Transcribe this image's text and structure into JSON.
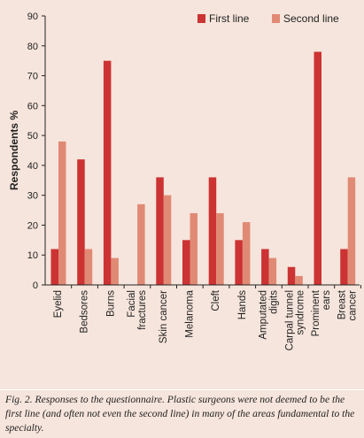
{
  "chart_data": {
    "type": "bar",
    "categories": [
      [
        "Eyelid"
      ],
      [
        "Bedsores"
      ],
      [
        "Burns"
      ],
      [
        "Facial",
        "fractures"
      ],
      [
        "Skin cancer"
      ],
      [
        "Melanoma"
      ],
      [
        "Cleft"
      ],
      [
        "Hands"
      ],
      [
        "Amputated",
        "digits"
      ],
      [
        "Carpal tunnel",
        "syndrome"
      ],
      [
        "Prominent",
        "ears"
      ],
      [
        "Breast",
        "cancer"
      ]
    ],
    "series": [
      {
        "name": "First line",
        "color": "#cc3333",
        "values": [
          12,
          42,
          75,
          0,
          36,
          15,
          36,
          15,
          12,
          6,
          78,
          12
        ]
      },
      {
        "name": "Second line",
        "color": "#e08a75",
        "values": [
          48,
          12,
          9,
          27,
          30,
          24,
          24,
          21,
          9,
          3,
          0,
          36
        ]
      }
    ],
    "ylabel": "Respondents %",
    "xlabel": "",
    "ylim": [
      0,
      90
    ],
    "yticks": [
      0,
      10,
      20,
      30,
      40,
      50,
      60,
      70,
      80,
      90
    ],
    "grid": false,
    "legend_position": "top-right"
  },
  "caption": "Fig. 2. Responses to the questionnaire. Plastic surgeons were not deemed to be the first line (and often not even the second line) in many of the areas fundamental to the specialty."
}
